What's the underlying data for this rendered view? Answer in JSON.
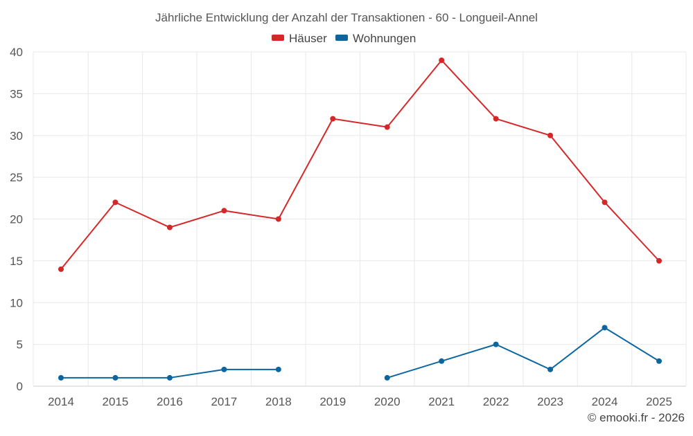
{
  "chart_data": {
    "type": "line",
    "title": "Jährliche Entwicklung der Anzahl der Transaktionen - 60 - Longueil-Annel",
    "categories": [
      "2014",
      "2015",
      "2016",
      "2017",
      "2018",
      "2019",
      "2020",
      "2021",
      "2022",
      "2023",
      "2024",
      "2025"
    ],
    "series": [
      {
        "name": "Häuser",
        "color": "#d62728",
        "values": [
          14,
          22,
          19,
          21,
          20,
          32,
          31,
          39,
          32,
          30,
          22,
          15
        ]
      },
      {
        "name": "Wohnungen",
        "color": "#0b66a0",
        "values": [
          1,
          1,
          1,
          2,
          2,
          null,
          1,
          3,
          5,
          2,
          7,
          3
        ]
      }
    ],
    "ylim": [
      0,
      40
    ],
    "yticks": [
      0,
      5,
      10,
      15,
      20,
      25,
      30,
      35,
      40
    ],
    "grid": true,
    "legend_position": "top-center",
    "xlabel": "",
    "ylabel": ""
  },
  "credit": "© emooki.fr - 2026"
}
